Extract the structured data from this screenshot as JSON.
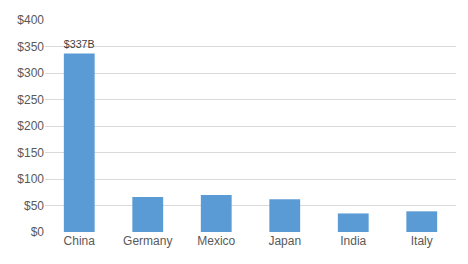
{
  "chart_data": {
    "type": "bar",
    "categories": [
      "China",
      "Germany",
      "Mexico",
      "Japan",
      "India",
      "Italy"
    ],
    "values": [
      337,
      66,
      70,
      62,
      35,
      39
    ],
    "value_labels": [
      "$337B",
      null,
      null,
      null,
      null,
      null
    ],
    "data_labels": true,
    "color": "#5b9bd5",
    "ylim": [
      0,
      400
    ],
    "yticks": [
      {
        "value": 0,
        "label": "$0"
      },
      {
        "value": 50,
        "label": "$50"
      },
      {
        "value": 100,
        "label": "$100"
      },
      {
        "value": 150,
        "label": "$150"
      },
      {
        "value": 200,
        "label": "$200"
      },
      {
        "value": 250,
        "label": "$250"
      },
      {
        "value": 300,
        "label": "$300"
      },
      {
        "value": 350,
        "label": "$350"
      },
      {
        "value": 400,
        "label": "$400"
      }
    ],
    "grid": true
  }
}
